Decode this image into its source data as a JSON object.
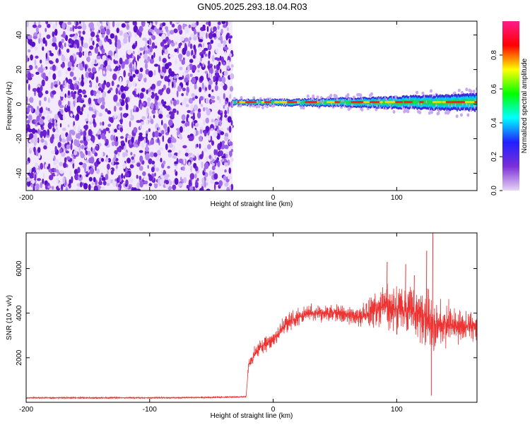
{
  "title": "GN05.2025.293.18.04.R03",
  "colors": {
    "line": "#ee3333",
    "background": "#ffffff",
    "axis": "#000000",
    "spectrogram_low": "#7b2fd8",
    "spectrogram_high": "#ff0000"
  },
  "chart_data": [
    {
      "type": "heatmap",
      "title": "GN05.2025.293.18.04.R03",
      "xlabel": "Height of straight line (km)",
      "ylabel": "Frequency (Hz)",
      "xlim": [
        -200,
        165
      ],
      "ylim": [
        -50,
        48
      ],
      "xticks": [
        -200,
        -100,
        0,
        100
      ],
      "yticks": [
        -40,
        -20,
        0,
        20,
        40
      ],
      "xtick_labels": [
        "-200",
        "-100",
        "0",
        "100"
      ],
      "ytick_labels": [
        "-40",
        "-20",
        "0",
        "20",
        "40"
      ],
      "noise_region_x": [
        -200,
        -33
      ],
      "signal_start_x": -33,
      "signal_center_frequency": 1,
      "signal_width_hz": [
        3,
        4,
        6,
        8,
        10
      ],
      "signal_width_at_x": [
        -33,
        20,
        80,
        120,
        165
      ],
      "colorbar": {
        "label": "Normalized spectral amplitude",
        "range": [
          0.0,
          1.0
        ],
        "ticks": [
          0.0,
          0.2,
          0.4,
          0.6,
          0.8
        ],
        "tick_labels": [
          "0.0",
          "0.2",
          "0.4",
          "0.6",
          "0.8"
        ],
        "palette": [
          "#e8d5f5",
          "#7b2fd8",
          "#2020ff",
          "#00ffff",
          "#00ff00",
          "#ffff00",
          "#ff0000",
          "#ff1a8c"
        ]
      }
    },
    {
      "type": "line",
      "xlabel": "Height of straight line (km)",
      "ylabel": "SNR (10 * v/v)",
      "xlim": [
        -200,
        165
      ],
      "ylim": [
        0,
        7600
      ],
      "xticks": [
        -200,
        -100,
        0,
        100
      ],
      "yticks": [
        2000,
        4000,
        6000
      ],
      "xtick_labels": [
        "-200",
        "-100",
        "0",
        "100"
      ],
      "ytick_labels": [
        "2000",
        "4000",
        "6000"
      ],
      "series": [
        {
          "name": "SNR",
          "x": [
            -200,
            -150,
            -100,
            -50,
            -22,
            -20,
            -15,
            -10,
            0,
            10,
            20,
            30,
            40,
            50,
            60,
            70,
            80,
            90,
            100,
            110,
            120,
            130,
            140,
            150,
            165
          ],
          "y": [
            200,
            200,
            200,
            220,
            250,
            1600,
            2200,
            2500,
            2800,
            3500,
            3800,
            4000,
            4000,
            4000,
            3900,
            3800,
            4100,
            4300,
            4100,
            4100,
            4000,
            3600,
            3500,
            3400,
            3400
          ],
          "noise_amplitude": [
            40,
            40,
            40,
            40,
            40,
            300,
            400,
            400,
            400,
            500,
            500,
            500,
            450,
            450,
            450,
            500,
            900,
            1200,
            1400,
            1400,
            1500,
            1500,
            1300,
            900,
            800
          ],
          "peaks": [
            {
              "x": 92,
              "y": 6300
            },
            {
              "x": 107,
              "y": 6200
            },
            {
              "x": 114,
              "y": 5700
            },
            {
              "x": 124,
              "y": 6800
            },
            {
              "x": 129,
              "y": 7600
            }
          ]
        }
      ]
    }
  ]
}
